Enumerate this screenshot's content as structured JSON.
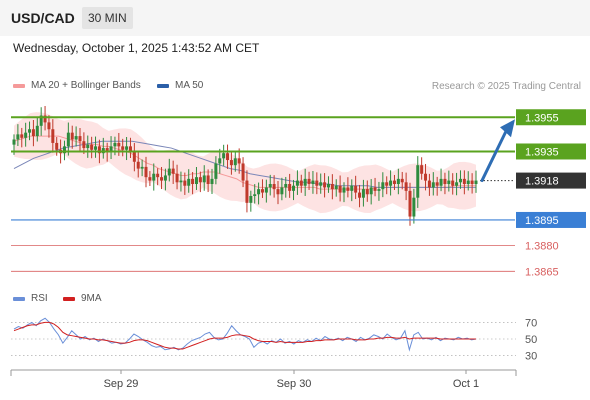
{
  "header": {
    "pair": "USD/CAD",
    "timeframe": "30 MIN"
  },
  "datetime": "Wednesday, October 1, 2025 1:43:52 AM CET",
  "legend": {
    "bollinger": "MA 20 + Bollinger Bands",
    "ma50": "MA 50",
    "credit": "Research © 2025 Trading Central"
  },
  "rsi_legend": {
    "rsi": "RSI",
    "ma": "9MA"
  },
  "colors": {
    "resistance": "#5aa31f",
    "support": "#3a7fd5",
    "minor_support": "#d86060",
    "current": "#333333",
    "arrow": "#2e6db4",
    "bands": "#fde0e0",
    "ma20": "#f59a9a",
    "ma50": "#7a86b8",
    "rsi": "#6a8fd8",
    "rsi_ma": "#d22020"
  },
  "chart_data": [
    {
      "type": "candlestick",
      "series_names": [
        "MA 20 + Bollinger Bands",
        "MA 50"
      ],
      "ylim": [
        1.3857,
        1.3968
      ],
      "x_tick_labels": [
        "Sep 29",
        "Sep 30",
        "Oct 1"
      ],
      "levels": [
        {
          "value": 1.3955,
          "label": "1.3955",
          "kind": "resistance"
        },
        {
          "value": 1.3935,
          "label": "1.3935",
          "kind": "resistance"
        },
        {
          "value": 1.3918,
          "label": "1.3918",
          "kind": "current"
        },
        {
          "value": 1.3895,
          "label": "1.3895",
          "kind": "support"
        },
        {
          "value": 1.388,
          "label": "1.3880",
          "kind": "minor_support"
        },
        {
          "value": 1.3865,
          "label": "1.3865",
          "kind": "minor_support"
        }
      ],
      "candles_close": [
        1.3942,
        1.3945,
        1.3943,
        1.3946,
        1.3948,
        1.3944,
        1.395,
        1.3956,
        1.3952,
        1.3948,
        1.394,
        1.3936,
        1.3934,
        1.3938,
        1.3946,
        1.3942,
        1.3944,
        1.3941,
        1.3937,
        1.3939,
        1.3936,
        1.3938,
        1.3934,
        1.3937,
        1.3935,
        1.3938,
        1.394,
        1.3938,
        1.3936,
        1.3938,
        1.3935,
        1.3929,
        1.3925,
        1.3926,
        1.392,
        1.3918,
        1.3922,
        1.392,
        1.3918,
        1.3921,
        1.3925,
        1.3922,
        1.3917,
        1.3918,
        1.3915,
        1.3919,
        1.3916,
        1.392,
        1.3917,
        1.3921,
        1.3916,
        1.3919,
        1.3928,
        1.3931,
        1.3934,
        1.393,
        1.3927,
        1.3931,
        1.3928,
        1.3918,
        1.3905,
        1.3909,
        1.391,
        1.3913,
        1.3911,
        1.3914,
        1.3916,
        1.3913,
        1.391,
        1.3914,
        1.3916,
        1.3912,
        1.3915,
        1.3918,
        1.3915,
        1.3919,
        1.3916,
        1.3918,
        1.3915,
        1.3917,
        1.3914,
        1.3916,
        1.3913,
        1.3915,
        1.3911,
        1.3914,
        1.3912,
        1.3915,
        1.3911,
        1.3908,
        1.3913,
        1.391,
        1.3914,
        1.3912,
        1.3913,
        1.3917,
        1.3915,
        1.3918,
        1.3916,
        1.3919,
        1.3917,
        1.3912,
        1.3897,
        1.3908,
        1.3927,
        1.3922,
        1.3918,
        1.3914,
        1.3917,
        1.3915,
        1.3919,
        1.3916,
        1.3918,
        1.3915,
        1.3917,
        1.3919,
        1.3916,
        1.3918,
        1.3916,
        1.3918
      ],
      "ma20": [
        1.3941,
        1.3942,
        1.3943,
        1.3944,
        1.3944,
        1.3944,
        1.3944,
        1.3944,
        1.3944,
        1.3943,
        1.3942,
        1.3941,
        1.394,
        1.3939,
        1.3939,
        1.3939,
        1.3938,
        1.3938,
        1.3937,
        1.3936,
        1.3935,
        1.3934,
        1.3932,
        1.393,
        1.3928,
        1.3927,
        1.3925,
        1.3924,
        1.3923,
        1.3922,
        1.3921,
        1.3921,
        1.3922,
        1.3922,
        1.3923,
        1.3923,
        1.3923,
        1.3922,
        1.3921,
        1.392,
        1.3919,
        1.3917,
        1.3916,
        1.3915,
        1.3914,
        1.3914,
        1.3914,
        1.3914,
        1.3914,
        1.3914,
        1.3914,
        1.3914,
        1.3914,
        1.3914,
        1.3914,
        1.3913,
        1.3913,
        1.3913,
        1.3913,
        1.3913,
        1.3913,
        1.3913,
        1.3913,
        1.3913,
        1.3913,
        1.3914,
        1.3914,
        1.3914,
        1.3914,
        1.3914,
        1.3914,
        1.3914,
        1.3914,
        1.3914,
        1.3914,
        1.3914,
        1.3914,
        1.3914,
        1.3914,
        1.3915,
        1.3915,
        1.3915,
        1.3915,
        1.3915
      ],
      "ma50": [
        1.3925,
        1.3928,
        1.3931,
        1.3933,
        1.3935,
        1.3937,
        1.3938,
        1.3939,
        1.394,
        1.3941,
        1.3941,
        1.3941,
        1.3941,
        1.394,
        1.3939,
        1.3938,
        1.3937,
        1.3935,
        1.3933,
        1.3931,
        1.3929,
        1.3927,
        1.3925,
        1.3924,
        1.3922,
        1.3921,
        1.392,
        1.3919,
        1.3918,
        1.3917,
        1.3917,
        1.3916,
        1.3916,
        1.3915,
        1.3915,
        1.3915,
        1.3915,
        1.3914,
        1.3914,
        1.3914,
        1.3914,
        1.3914,
        1.3914,
        1.3914,
        1.3914,
        1.3914,
        1.3914,
        1.3914
      ]
    },
    {
      "type": "line",
      "series_names": [
        "RSI",
        "9MA"
      ],
      "ylim": [
        15,
        85
      ],
      "y_tick_labels": [
        "70",
        "50",
        "30"
      ],
      "y_ticks": [
        70,
        50,
        30
      ],
      "rsi": [
        62,
        65,
        63,
        67,
        70,
        66,
        72,
        75,
        70,
        62,
        55,
        45,
        52,
        60,
        55,
        50,
        53,
        49,
        51,
        47,
        50,
        48,
        45,
        46,
        44,
        45,
        50,
        56,
        53,
        49,
        46,
        42,
        40,
        41,
        37,
        38,
        40,
        37,
        39,
        44,
        48,
        50,
        52,
        56,
        58,
        52,
        49,
        50,
        57,
        66,
        60,
        55,
        53,
        50,
        40,
        45,
        47,
        44,
        48,
        46,
        50,
        45,
        47,
        44,
        48,
        46,
        49,
        47,
        51,
        48,
        53,
        50,
        49,
        51,
        48,
        52,
        50,
        47,
        52,
        49,
        51,
        55,
        53,
        50,
        56,
        52,
        49,
        51,
        60,
        37,
        55,
        58,
        50,
        51,
        49,
        52,
        48,
        51,
        50,
        49,
        52,
        50,
        51,
        49,
        50
      ],
      "rsi_ma": [
        60,
        62,
        64,
        66,
        67,
        67,
        69,
        70,
        70,
        68,
        64,
        58,
        55,
        54,
        53,
        52,
        51,
        50,
        50,
        49,
        49,
        48,
        47,
        46,
        45,
        45,
        46,
        48,
        49,
        49,
        48,
        46,
        44,
        42,
        40,
        39,
        39,
        38,
        38,
        40,
        42,
        44,
        46,
        48,
        50,
        51,
        51,
        51,
        52,
        54,
        55,
        55,
        54,
        53,
        50,
        48,
        47,
        47,
        47,
        46,
        47,
        46,
        46,
        46,
        46,
        46,
        47,
        47,
        48,
        48,
        49,
        49,
        49,
        50,
        50,
        50,
        50,
        49,
        49,
        49,
        50,
        50,
        51,
        51,
        52,
        52,
        51,
        51,
        52,
        50,
        51,
        51,
        51,
        51,
        51,
        51,
        50,
        50,
        50,
        50,
        50,
        50,
        50,
        50,
        50
      ]
    }
  ]
}
